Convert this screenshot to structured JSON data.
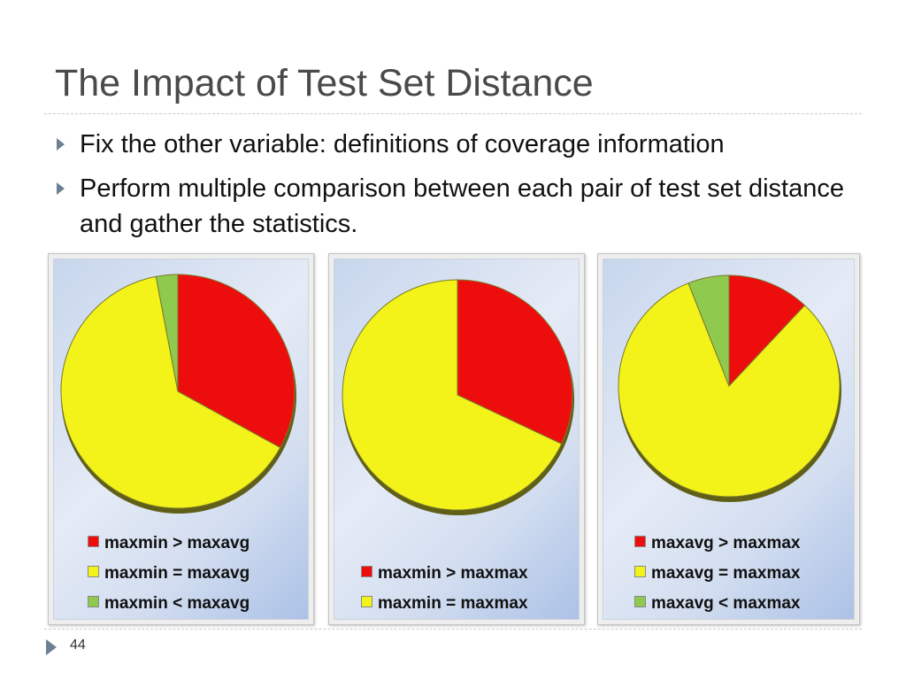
{
  "slide": {
    "title": "The Impact of Test Set Distance",
    "bullets": [
      "Fix the other variable: definitions of coverage information",
      "Perform multiple comparison between each pair of test set distance and gather the statistics."
    ],
    "page_number": "44"
  },
  "chart_data": [
    {
      "type": "pie",
      "labels": [
        "maxmin > maxavg",
        "maxmin = maxavg",
        "maxmin < maxavg"
      ],
      "values": [
        33,
        64,
        3
      ],
      "colors": [
        "#ee0d0d",
        "#f3f319",
        "#8fc94d"
      ],
      "legend": "bottom"
    },
    {
      "type": "pie",
      "labels": [
        "maxmin > maxmax",
        "maxmin = maxmax"
      ],
      "values": [
        32,
        68
      ],
      "colors": [
        "#ee0d0d",
        "#f3f319"
      ],
      "legend": "bottom"
    },
    {
      "type": "pie",
      "labels": [
        "maxavg > maxmax",
        "maxavg = maxmax",
        "maxavg < maxmax"
      ],
      "values": [
        12,
        82,
        6
      ],
      "colors": [
        "#ee0d0d",
        "#f3f319",
        "#8fc94d"
      ],
      "legend": "bottom"
    }
  ]
}
